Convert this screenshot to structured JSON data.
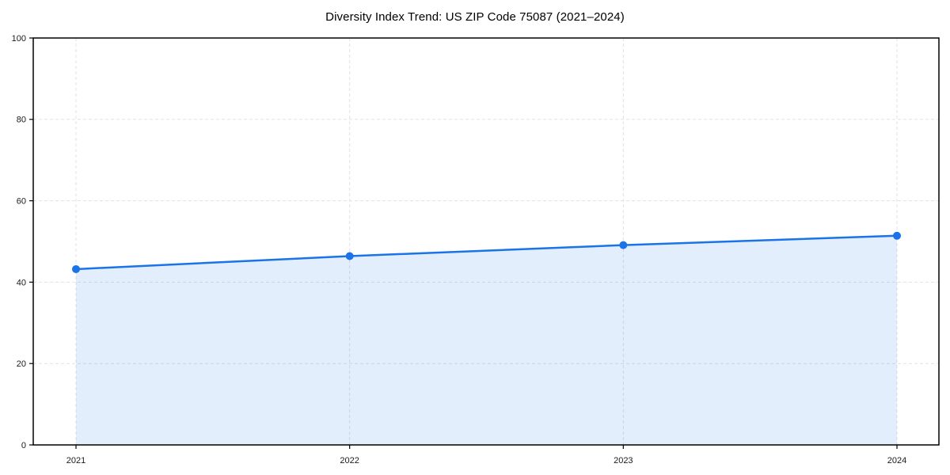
{
  "page": {
    "title": "Diversity Index Trend: US ZIP Code 75087 (2021–2024)"
  },
  "chart_data": {
    "type": "area",
    "title": "Diversity Index Trend: US ZIP Code 75087 (2021–2024)",
    "categories": [
      "2021",
      "2022",
      "2023",
      "2024"
    ],
    "series": [
      {
        "name": "Diversity Index",
        "values": [
          43.2,
          46.4,
          49.1,
          51.4
        ]
      }
    ],
    "xlabel": "",
    "ylabel": "",
    "ylim": [
      0,
      100
    ],
    "yticks": [
      0,
      20,
      40,
      60,
      80,
      100
    ],
    "grid": "dashed-both-axes",
    "legend": "none",
    "colors": {
      "line": "#1a73e8",
      "marker": "#1a73e8",
      "fill": "rgba(26,115,232,0.12)",
      "grid": "#e2e2e2",
      "axis": "#000000",
      "tick_label": "#1a1a1a",
      "background": "#ffffff"
    }
  }
}
